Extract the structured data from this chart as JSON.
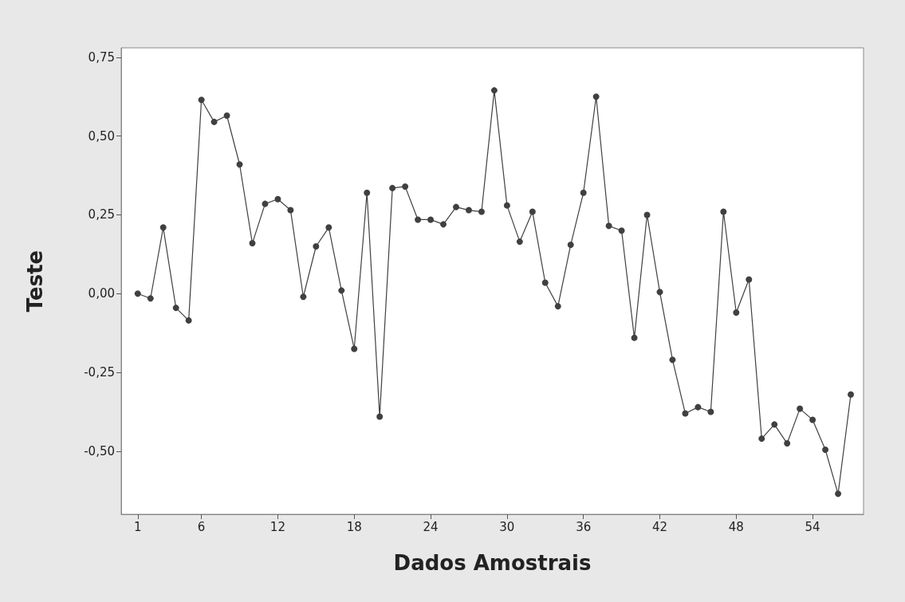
{
  "chart_data": {
    "type": "line",
    "xlabel": "Dados Amostrais",
    "ylabel": "Teste",
    "x": [
      1,
      2,
      3,
      4,
      5,
      6,
      7,
      8,
      9,
      10,
      11,
      12,
      13,
      14,
      15,
      16,
      17,
      18,
      19,
      20,
      21,
      22,
      23,
      24,
      25,
      26,
      27,
      28,
      29,
      30,
      31,
      32,
      33,
      34,
      35,
      36,
      37,
      38,
      39,
      40,
      41,
      42,
      43,
      44,
      45,
      46,
      47,
      48,
      49,
      50,
      51,
      52,
      53,
      54,
      55,
      56,
      57
    ],
    "series": [
      {
        "color": "#404040",
        "values": [
          0.0,
          -0.015,
          0.21,
          -0.045,
          -0.085,
          0.615,
          0.545,
          0.565,
          0.41,
          0.16,
          0.285,
          0.3,
          0.265,
          -0.01,
          0.15,
          0.21,
          0.01,
          -0.175,
          0.32,
          -0.39,
          0.335,
          0.34,
          0.235,
          0.235,
          0.22,
          0.275,
          0.265,
          0.26,
          0.645,
          0.28,
          0.165,
          0.26,
          0.035,
          -0.04,
          0.155,
          0.32,
          0.625,
          0.215,
          0.2,
          -0.14,
          0.25,
          0.005,
          -0.21,
          -0.38,
          -0.36,
          -0.375,
          0.26,
          -0.06,
          0.045,
          -0.46,
          -0.415,
          -0.475,
          -0.365,
          -0.4,
          -0.495,
          -0.635,
          -0.32
        ]
      }
    ],
    "xlim": [
      -0.3,
      58
    ],
    "xticks": [
      1,
      6,
      12,
      18,
      24,
      30,
      36,
      42,
      48,
      54
    ],
    "ylim": [
      -0.7,
      0.78
    ],
    "yticks": [
      {
        "value": -0.5,
        "label": "-0,50"
      },
      {
        "value": -0.25,
        "label": "-0,25"
      },
      {
        "value": 0,
        "label": "0,00"
      },
      {
        "value": 0.25,
        "label": "0,25"
      },
      {
        "value": 0.5,
        "label": "0,50"
      },
      {
        "value": 0.75,
        "label": "0,75"
      }
    ],
    "grid": false,
    "marker": "circle",
    "line_style": "solid"
  }
}
